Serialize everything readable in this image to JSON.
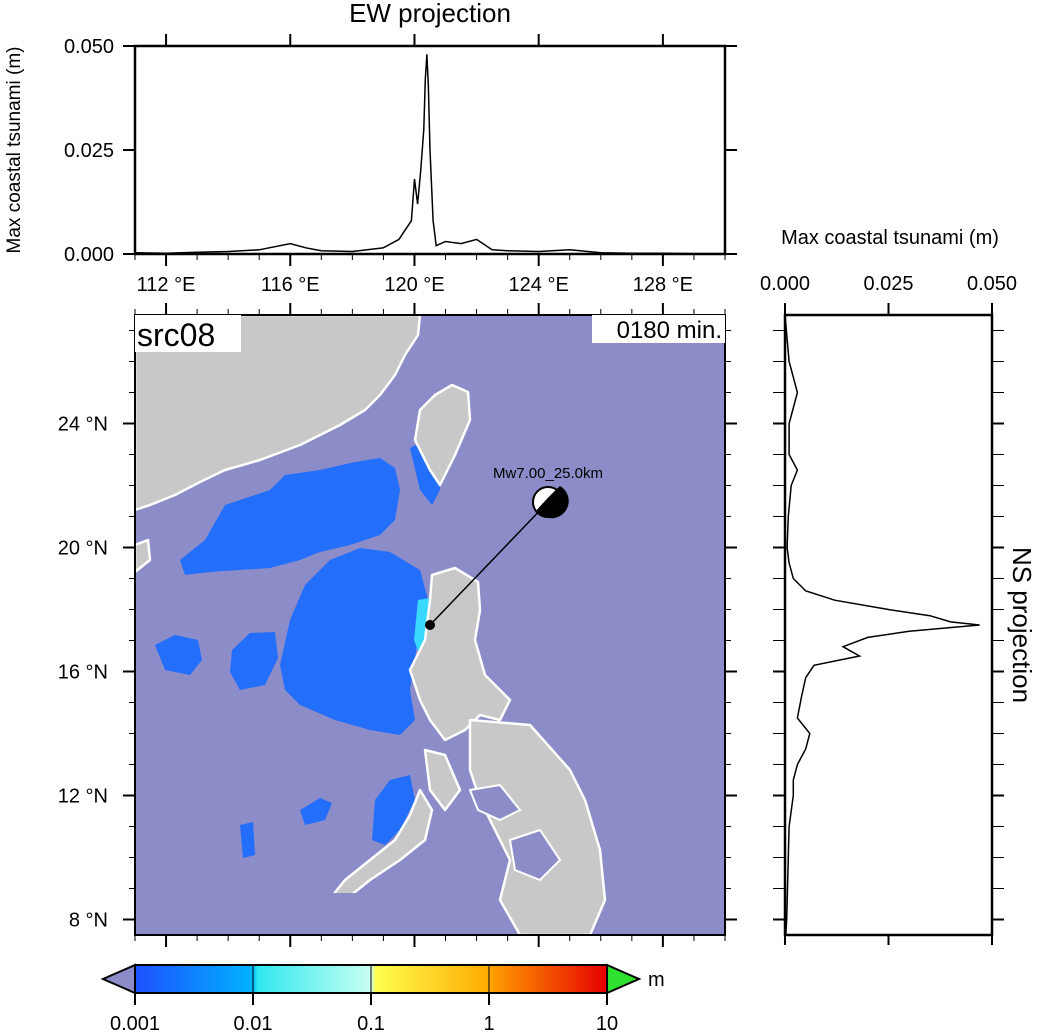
{
  "ew_panel": {
    "title": "EW projection",
    "ylabel": "Max coastal tsunami (m)",
    "y_ticks": [
      "0.050",
      "0.025",
      "0.000"
    ],
    "x_ticks": [
      "112 °E",
      "116 °E",
      "120 °E",
      "124 °E",
      "128 °E"
    ]
  },
  "ns_panel": {
    "title": "NS projection",
    "xlabel": "Max coastal tsunami (m)",
    "x_ticks": [
      "0.000",
      "0.025",
      "0.050"
    ]
  },
  "map": {
    "source_label": "src08",
    "time_label": "0180 min.",
    "event_label": "Mw7.00_25.0km",
    "lat_ticks": [
      "24 °N",
      "20 °N",
      "16 °N",
      "12 °N",
      "8 °N"
    ],
    "colors": {
      "ocean": "#8c8cc8",
      "land": "#c8c8c8",
      "coast": "#ffffff",
      "tsunami": "#1e6eff"
    }
  },
  "colorbar": {
    "unit": "m",
    "tick_labels": [
      "0.001",
      "0.01",
      "0.1",
      "1",
      "10"
    ]
  },
  "chart_data": [
    {
      "type": "line",
      "title": "EW projection",
      "xlabel": "",
      "ylabel": "Max coastal tsunami (m)",
      "xlim": [
        111,
        130
      ],
      "ylim": [
        0,
        0.05
      ],
      "x": [
        111,
        112,
        113,
        114,
        115,
        116,
        116.5,
        117,
        118,
        119,
        119.5,
        119.9,
        120.0,
        120.1,
        120.2,
        120.3,
        120.35,
        120.4,
        120.45,
        120.5,
        120.6,
        120.7,
        121,
        121.5,
        122,
        122.5,
        123,
        124,
        125,
        126,
        127,
        128,
        129,
        130
      ],
      "y": [
        0.0003,
        0.0002,
        0.0004,
        0.0006,
        0.001,
        0.0025,
        0.0015,
        0.0008,
        0.0006,
        0.0015,
        0.0035,
        0.008,
        0.018,
        0.012,
        0.02,
        0.03,
        0.042,
        0.048,
        0.04,
        0.025,
        0.008,
        0.002,
        0.003,
        0.0025,
        0.0035,
        0.001,
        0.0008,
        0.0006,
        0.001,
        0.0003,
        0.0002,
        0.0002,
        0.0001,
        0.0001
      ]
    },
    {
      "type": "line",
      "title": "NS projection",
      "xlabel": "Max coastal tsunami (m)",
      "ylabel": "",
      "xlim": [
        0,
        0.05
      ],
      "ylim": [
        7.5,
        27.5
      ],
      "y": [
        27.5,
        26,
        25,
        24.5,
        24,
        23,
        22.5,
        22,
        21,
        20,
        19.5,
        19,
        18.6,
        18.3,
        18,
        17.8,
        17.6,
        17.5,
        17.3,
        17.1,
        16.8,
        16.5,
        16.2,
        15.8,
        15.2,
        14.5,
        14,
        13.5,
        13,
        12.5,
        12,
        11,
        10,
        9,
        8,
        7.5
      ],
      "x": [
        0,
        0.001,
        0.003,
        0.002,
        0.001,
        0.001,
        0.003,
        0.0015,
        0.0008,
        0.0005,
        0.001,
        0.002,
        0.005,
        0.012,
        0.025,
        0.035,
        0.04,
        0.047,
        0.03,
        0.02,
        0.014,
        0.018,
        0.007,
        0.005,
        0.004,
        0.003,
        0.006,
        0.005,
        0.003,
        0.002,
        0.002,
        0.001,
        0.0008,
        0.0006,
        0.0004,
        0.0002
      ]
    }
  ]
}
